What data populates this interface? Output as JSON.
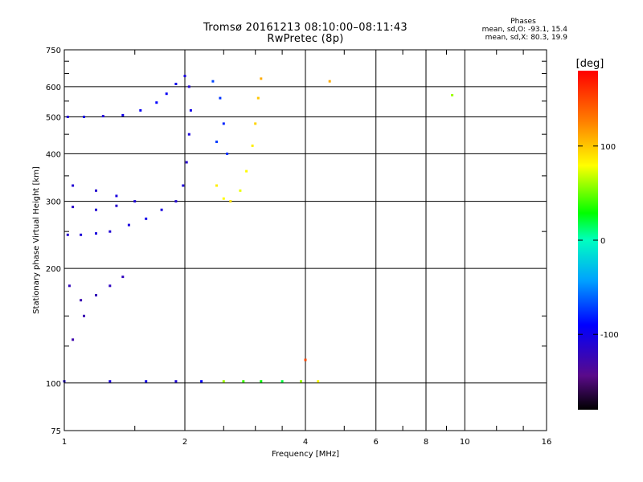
{
  "header": {
    "title_line1": "Tromsø 20161213 08:10:00–08:11:43",
    "title_line2": "RwPretec (8p)"
  },
  "phase_info": {
    "heading": "Phases",
    "line_o": "mean, sd,O: -93.1, 15.4",
    "line_x": "mean, sd,X: 80.3, 19.9"
  },
  "colorbar": {
    "label": "[deg]",
    "ticks": [
      "100",
      "0",
      "-100"
    ],
    "tick_values": [
      100,
      0,
      -100
    ],
    "range": [
      -180,
      180
    ]
  },
  "chart_data": {
    "type": "scatter",
    "title": "Tromsø 20161213 08:10:00–08:11:43",
    "subtitle": "RwPretec (8p)",
    "xlabel": "Frequency [MHz]",
    "ylabel": "Stationary phase Virtual Height [km]",
    "xscale": "log",
    "yscale": "log",
    "xlim": [
      1,
      16
    ],
    "ylim": [
      75,
      750
    ],
    "xticks": [
      1,
      2,
      4,
      6,
      8,
      10,
      16
    ],
    "xtick_labels": [
      "1",
      "2",
      "4",
      "6",
      "8",
      "10",
      "16"
    ],
    "yticks": [
      75,
      100,
      200,
      300,
      400,
      500,
      600,
      750
    ],
    "ytick_labels": [
      "75",
      "100",
      "200",
      "300",
      "400",
      "500",
      "600",
      "750"
    ],
    "grid": true,
    "color_dimension": "phase [deg]",
    "trace_points": {
      "columns": [
        "freq_MHz",
        "height_km",
        "phase_deg"
      ],
      "o_trace": [
        [
          1.02,
          500,
          -110
        ],
        [
          1.12,
          500,
          -105
        ],
        [
          1.25,
          502,
          -108
        ],
        [
          1.4,
          505,
          -100
        ],
        [
          1.55,
          520,
          -95
        ],
        [
          1.7,
          545,
          -90
        ],
        [
          1.8,
          575,
          -95
        ],
        [
          1.9,
          610,
          -100
        ],
        [
          2.0,
          640,
          -105
        ],
        [
          2.05,
          600,
          -110
        ],
        [
          1.02,
          245,
          -112
        ],
        [
          1.1,
          245,
          -108
        ],
        [
          1.2,
          247,
          -106
        ],
        [
          1.3,
          250,
          -110
        ],
        [
          1.45,
          260,
          -105
        ],
        [
          1.6,
          270,
          -100
        ],
        [
          1.75,
          285,
          -105
        ],
        [
          1.9,
          300,
          -110
        ],
        [
          1.98,
          330,
          -108
        ],
        [
          2.02,
          380,
          -112
        ],
        [
          2.05,
          450,
          -105
        ],
        [
          2.07,
          520,
          -100
        ],
        [
          1.05,
          290,
          -115
        ],
        [
          1.2,
          285,
          -110
        ],
        [
          1.35,
          292,
          -112
        ],
        [
          1.5,
          300,
          -108
        ],
        [
          1.05,
          330,
          -110
        ],
        [
          1.2,
          320,
          -112
        ],
        [
          1.35,
          310,
          -105
        ],
        [
          1.03,
          180,
          -120
        ],
        [
          1.1,
          165,
          -125
        ],
        [
          1.2,
          170,
          -122
        ],
        [
          1.3,
          180,
          -118
        ],
        [
          1.4,
          190,
          -120
        ],
        [
          1.05,
          130,
          -128
        ],
        [
          1.12,
          150,
          -125
        ],
        [
          2.35,
          620,
          -70
        ],
        [
          2.45,
          560,
          -75
        ],
        [
          2.5,
          480,
          -80
        ],
        [
          2.4,
          430,
          -72
        ],
        [
          2.55,
          400,
          -78
        ],
        [
          1.0,
          101,
          -110
        ],
        [
          1.3,
          101,
          -105
        ],
        [
          1.6,
          101,
          -100
        ],
        [
          1.9,
          101,
          -108
        ],
        [
          2.2,
          101,
          -90
        ]
      ],
      "x_trace": [
        [
          2.4,
          330,
          85
        ],
        [
          2.5,
          305,
          80
        ],
        [
          2.6,
          300,
          90
        ],
        [
          2.75,
          320,
          75
        ],
        [
          2.85,
          360,
          80
        ],
        [
          2.95,
          420,
          85
        ],
        [
          3.0,
          480,
          95
        ],
        [
          3.05,
          560,
          100
        ],
        [
          3.1,
          630,
          110
        ],
        [
          2.5,
          101,
          60
        ],
        [
          2.8,
          101,
          40
        ],
        [
          3.1,
          101,
          30
        ],
        [
          3.5,
          101,
          20
        ],
        [
          3.9,
          101,
          60
        ],
        [
          4.3,
          101,
          80
        ],
        [
          4.0,
          115,
          150
        ],
        [
          4.6,
          620,
          110
        ],
        [
          9.3,
          570,
          60
        ]
      ]
    }
  }
}
